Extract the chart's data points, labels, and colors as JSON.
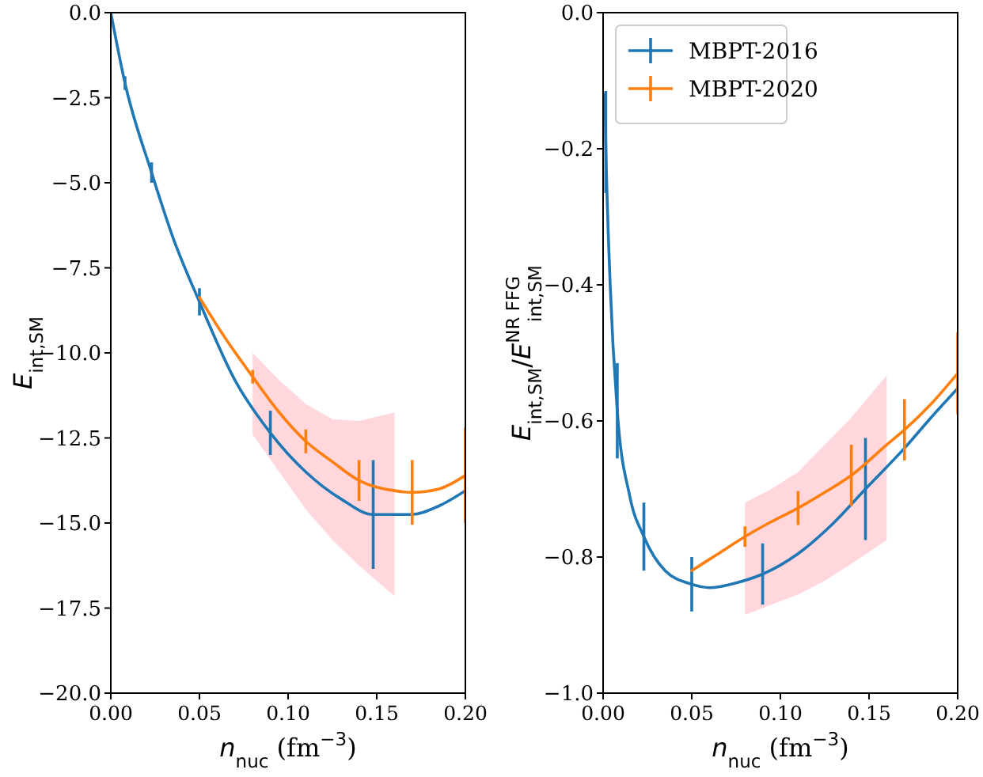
{
  "chart_data": [
    {
      "type": "line",
      "xlabel": "n$_{nuc}$ (fm$^{−3}$)",
      "ylabel": "E$_{int,SM}$",
      "xlim": [
        0,
        0.2
      ],
      "ylim": [
        -20,
        0
      ],
      "xticks": [
        {
          "value": 0,
          "label": "0.00"
        },
        {
          "value": 0.05,
          "label": "0.05"
        },
        {
          "value": 0.1,
          "label": "0.10"
        },
        {
          "value": 0.15,
          "label": "0.15"
        },
        {
          "value": 0.2,
          "label": "0.20"
        }
      ],
      "yticks": [
        {
          "value": -20,
          "label": "−20.0"
        },
        {
          "value": -17.5,
          "label": "−17.5"
        },
        {
          "value": -15,
          "label": "−15.0"
        },
        {
          "value": -12.5,
          "label": "−12.5"
        },
        {
          "value": -10,
          "label": "−10.0"
        },
        {
          "value": -7.5,
          "label": "−7.5"
        },
        {
          "value": -5,
          "label": "−5.0"
        },
        {
          "value": -2.5,
          "label": "−2.5"
        },
        {
          "value": 0,
          "label": "0.0"
        }
      ],
      "grid": false,
      "legend": false,
      "marker": "none",
      "line_style": "solid",
      "series": [
        {
          "color": "#1f77b4",
          "x": [
            0,
            0.008,
            0.023,
            0.035,
            0.05,
            0.07,
            0.09,
            0.11,
            0.13,
            0.148,
            0.17,
            0.185,
            0.2
          ],
          "values": [
            0,
            -2.07,
            -4.7,
            -6.6,
            -8.5,
            -10.8,
            -12.35,
            -13.5,
            -14.3,
            -14.75,
            -14.75,
            -14.5,
            -14.05
          ],
          "errors": [
            null,
            0.2,
            0.3,
            null,
            0.4,
            null,
            0.65,
            null,
            null,
            1.6,
            null,
            null,
            null
          ]
        },
        {
          "color": "#ff7f0e",
          "x": [
            0.05,
            0.065,
            0.08,
            0.095,
            0.11,
            0.125,
            0.14,
            0.16,
            0.17,
            0.185,
            0.2
          ],
          "values": [
            -8.37,
            -9.6,
            -10.7,
            -11.75,
            -12.6,
            -13.2,
            -13.75,
            -14.05,
            -14.1,
            -14.0,
            -13.6
          ],
          "errors": [
            null,
            null,
            0.2,
            null,
            0.35,
            null,
            0.6,
            null,
            0.95,
            null,
            1.4
          ],
          "lower": [
            null,
            null,
            -12.4,
            -13.5,
            -14.6,
            -15.5,
            -16.25,
            -17.15,
            null,
            null,
            null
          ],
          "upper": [
            null,
            null,
            -10.0,
            -10.8,
            -11.5,
            -11.95,
            -12.0,
            -11.75,
            null,
            null,
            null
          ]
        }
      ]
    },
    {
      "type": "line",
      "xlabel": "n$_{nuc}$ (fm$^{−3}$)",
      "ylabel": "E$_{int,SM}$/E$^{NR FFG}$$_{int,SM}$",
      "xlim": [
        0,
        0.2
      ],
      "ylim": [
        -1,
        0
      ],
      "xticks": [
        {
          "value": 0,
          "label": "0.00"
        },
        {
          "value": 0.05,
          "label": "0.05"
        },
        {
          "value": 0.1,
          "label": "0.10"
        },
        {
          "value": 0.15,
          "label": "0.15"
        },
        {
          "value": 0.2,
          "label": "0.20"
        }
      ],
      "yticks": [
        {
          "value": -1,
          "label": "−1.0"
        },
        {
          "value": -0.8,
          "label": "−0.8"
        },
        {
          "value": -0.6,
          "label": "−0.6"
        },
        {
          "value": -0.4,
          "label": "−0.4"
        },
        {
          "value": -0.2,
          "label": "−0.2"
        },
        {
          "value": 0,
          "label": "0.0"
        }
      ],
      "grid": false,
      "legend": "top left",
      "marker": "none",
      "line_style": "solid",
      "series": [
        {
          "name": "MBPT-2016",
          "color": "#1f77b4",
          "x": [
            0.001,
            0.0015,
            0.004,
            0.008,
            0.015,
            0.023,
            0.035,
            0.05,
            0.06,
            0.075,
            0.09,
            0.11,
            0.13,
            0.148,
            0.17,
            0.185,
            0.2
          ],
          "values": [
            -0.12,
            -0.19,
            -0.4,
            -0.585,
            -0.71,
            -0.77,
            -0.82,
            -0.84,
            -0.845,
            -0.838,
            -0.825,
            -0.795,
            -0.75,
            -0.7,
            -0.64,
            -0.595,
            -0.552
          ],
          "errors": [
            null,
            0.075,
            null,
            0.07,
            null,
            0.05,
            null,
            0.04,
            null,
            null,
            0.045,
            null,
            null,
            0.075,
            null,
            null,
            null
          ]
        },
        {
          "name": "MBPT-2020",
          "color": "#ff7f0e",
          "x": [
            0.05,
            0.065,
            0.08,
            0.095,
            0.11,
            0.125,
            0.14,
            0.16,
            0.17,
            0.185,
            0.2
          ],
          "values": [
            -0.82,
            -0.795,
            -0.77,
            -0.748,
            -0.728,
            -0.705,
            -0.68,
            -0.635,
            -0.613,
            -0.575,
            -0.53
          ],
          "errors": [
            null,
            null,
            0.015,
            null,
            0.025,
            null,
            0.045,
            null,
            0.045,
            null,
            0.06
          ],
          "lower": [
            null,
            null,
            -0.885,
            -0.87,
            -0.855,
            -0.835,
            -0.81,
            -0.775,
            null,
            null,
            null
          ],
          "upper": [
            null,
            null,
            -0.72,
            -0.7,
            -0.675,
            -0.635,
            -0.595,
            -0.533,
            null,
            null,
            null
          ]
        }
      ]
    }
  ]
}
